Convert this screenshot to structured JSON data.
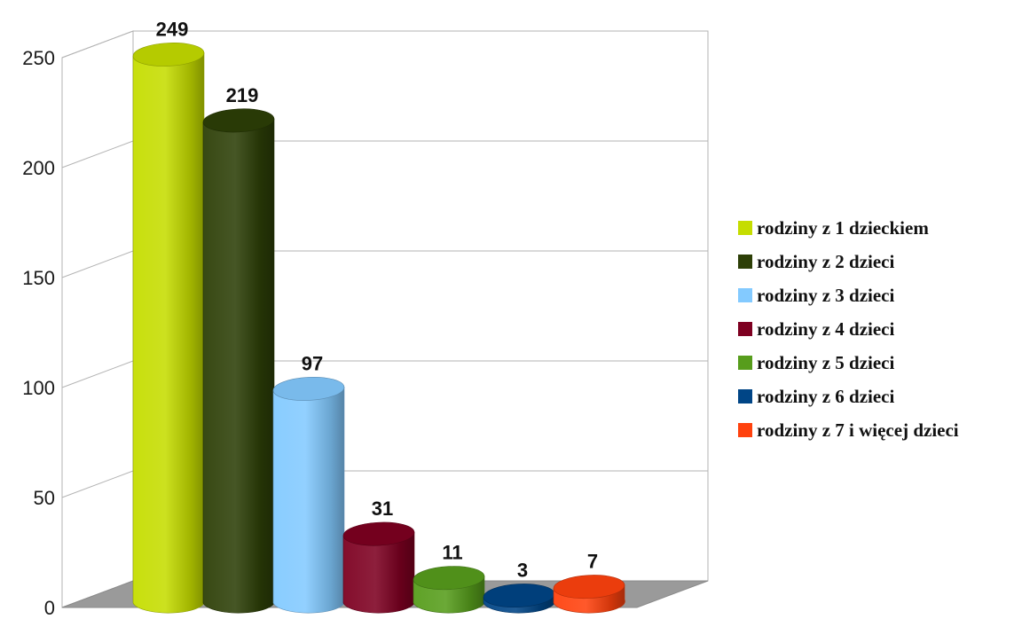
{
  "chart_data": {
    "type": "bar",
    "title": "",
    "xlabel": "",
    "ylabel": "",
    "ylim": [
      0,
      250
    ],
    "yticks": [
      0,
      50,
      100,
      150,
      200,
      250
    ],
    "grid": true,
    "legend_position": "right",
    "bar_style": "3d-cylinder",
    "series": [
      {
        "name": "rodziny z 1 dzieckiem",
        "value": 249,
        "color": "#c5dd00"
      },
      {
        "name": "rodziny z 2 dzieci",
        "value": 219,
        "color": "#2d3f07"
      },
      {
        "name": "rodziny z 3 dzieci",
        "value": 97,
        "color": "#83caff"
      },
      {
        "name": "rodziny z 4 dzieci",
        "value": 31,
        "color": "#7e0021"
      },
      {
        "name": "rodziny z 5 dzieci",
        "value": 11,
        "color": "#579d1c"
      },
      {
        "name": "rodziny z 6 dzieci",
        "value": 3,
        "color": "#004586"
      },
      {
        "name": "rodziny z 7 i więcej dzieci",
        "value": 7,
        "color": "#ff420e"
      }
    ]
  }
}
